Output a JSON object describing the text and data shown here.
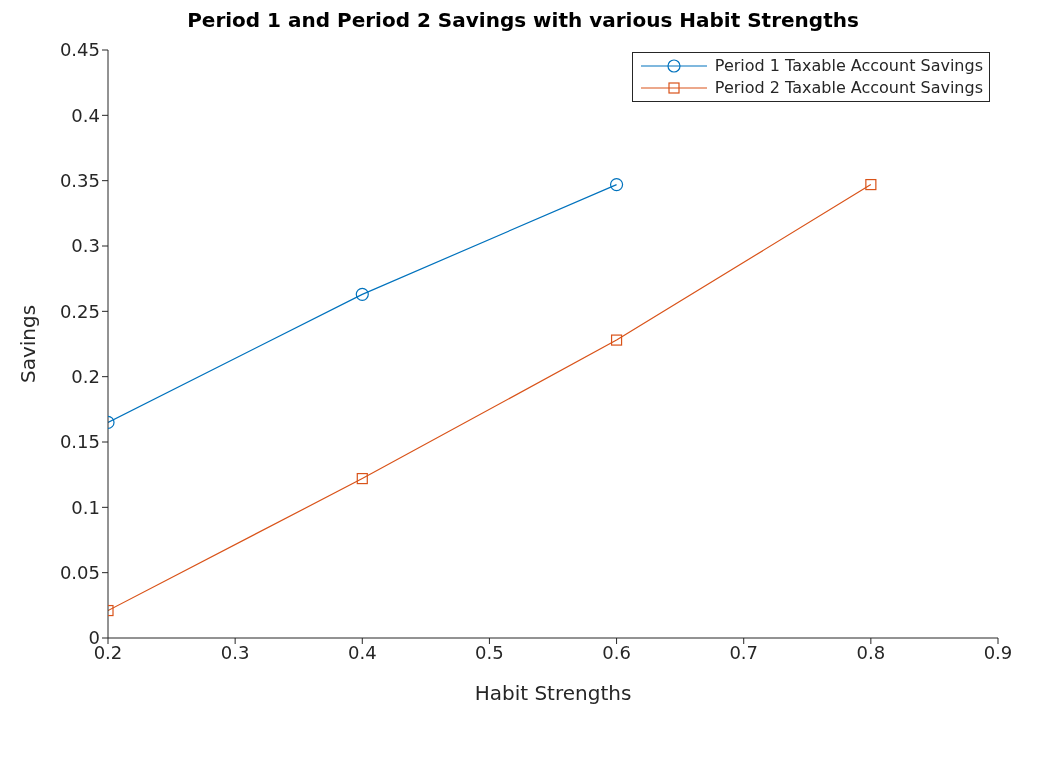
{
  "chart_data": {
    "type": "line",
    "title": "Period 1 and Period 2 Savings with various Habit Strengths",
    "xlabel": "Habit Strengths",
    "ylabel": "Savings",
    "x": [
      0.2,
      0.4,
      0.6,
      0.8
    ],
    "series": [
      {
        "name": "Period 1 Taxable Account Savings",
        "color": "#0072bd",
        "marker": "circle",
        "values": [
          0.165,
          0.263,
          0.347,
          null
        ]
      },
      {
        "name": "Period 2 Taxable Account Savings",
        "color": "#d95319",
        "marker": "square",
        "values": [
          0.021,
          0.122,
          0.228,
          0.347
        ]
      }
    ],
    "xlim": [
      0.2,
      0.9
    ],
    "xticks": [
      0.2,
      0.3,
      0.4,
      0.5,
      0.6,
      0.7,
      0.8,
      0.9
    ],
    "ylim": [
      0,
      0.45
    ],
    "yticks": [
      0,
      0.05,
      0.1,
      0.15,
      0.2,
      0.25,
      0.3,
      0.35,
      0.4,
      0.45
    ],
    "grid": false,
    "legend": "top right"
  }
}
